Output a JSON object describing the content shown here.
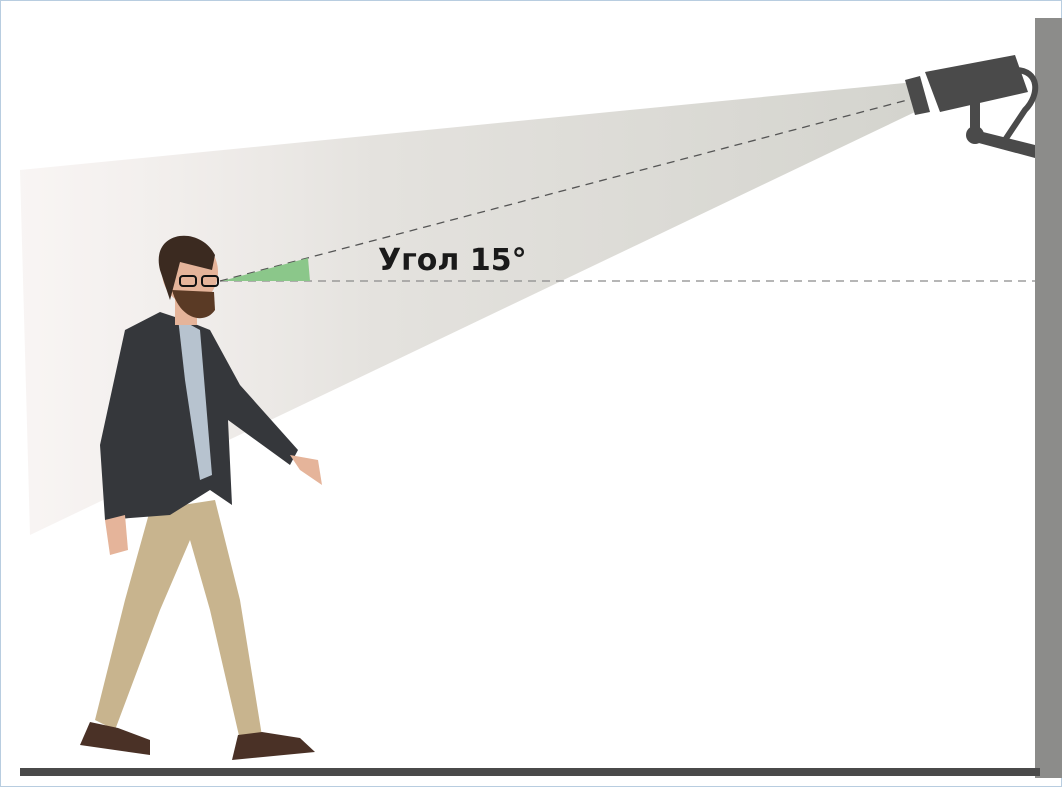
{
  "annotation": {
    "text": "Угол 15°"
  }
}
